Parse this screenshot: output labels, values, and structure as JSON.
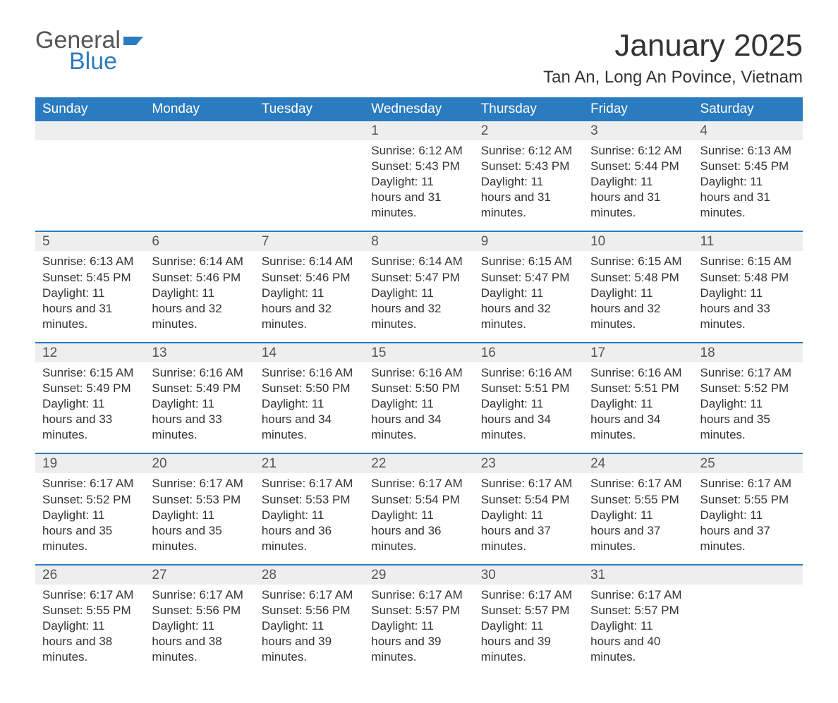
{
  "logo": {
    "word1": "General",
    "word2": "Blue",
    "flag_color": "#2a7bbf"
  },
  "title": "January 2025",
  "location": "Tan An, Long An Povince, Vietnam",
  "colors": {
    "header_bg": "#2a7bbf",
    "header_text": "#ffffff",
    "daynum_bg": "#eeeeee",
    "row_border": "#2a7bbf",
    "body_text": "#333333",
    "page_bg": "#ffffff"
  },
  "fonts": {
    "title_pt": 44,
    "location_pt": 24,
    "dayheader_pt": 19,
    "daynum_pt": 19,
    "body_pt": 17
  },
  "day_headers": [
    "Sunday",
    "Monday",
    "Tuesday",
    "Wednesday",
    "Thursday",
    "Friday",
    "Saturday"
  ],
  "labels": {
    "sunrise": "Sunrise",
    "sunset": "Sunset",
    "daylight": "Daylight"
  },
  "weeks": [
    [
      null,
      null,
      null,
      {
        "n": "1",
        "sunrise": "6:12 AM",
        "sunset": "5:43 PM",
        "daylight": "11 hours and 31 minutes."
      },
      {
        "n": "2",
        "sunrise": "6:12 AM",
        "sunset": "5:43 PM",
        "daylight": "11 hours and 31 minutes."
      },
      {
        "n": "3",
        "sunrise": "6:12 AM",
        "sunset": "5:44 PM",
        "daylight": "11 hours and 31 minutes."
      },
      {
        "n": "4",
        "sunrise": "6:13 AM",
        "sunset": "5:45 PM",
        "daylight": "11 hours and 31 minutes."
      }
    ],
    [
      {
        "n": "5",
        "sunrise": "6:13 AM",
        "sunset": "5:45 PM",
        "daylight": "11 hours and 31 minutes."
      },
      {
        "n": "6",
        "sunrise": "6:14 AM",
        "sunset": "5:46 PM",
        "daylight": "11 hours and 32 minutes."
      },
      {
        "n": "7",
        "sunrise": "6:14 AM",
        "sunset": "5:46 PM",
        "daylight": "11 hours and 32 minutes."
      },
      {
        "n": "8",
        "sunrise": "6:14 AM",
        "sunset": "5:47 PM",
        "daylight": "11 hours and 32 minutes."
      },
      {
        "n": "9",
        "sunrise": "6:15 AM",
        "sunset": "5:47 PM",
        "daylight": "11 hours and 32 minutes."
      },
      {
        "n": "10",
        "sunrise": "6:15 AM",
        "sunset": "5:48 PM",
        "daylight": "11 hours and 32 minutes."
      },
      {
        "n": "11",
        "sunrise": "6:15 AM",
        "sunset": "5:48 PM",
        "daylight": "11 hours and 33 minutes."
      }
    ],
    [
      {
        "n": "12",
        "sunrise": "6:15 AM",
        "sunset": "5:49 PM",
        "daylight": "11 hours and 33 minutes."
      },
      {
        "n": "13",
        "sunrise": "6:16 AM",
        "sunset": "5:49 PM",
        "daylight": "11 hours and 33 minutes."
      },
      {
        "n": "14",
        "sunrise": "6:16 AM",
        "sunset": "5:50 PM",
        "daylight": "11 hours and 34 minutes."
      },
      {
        "n": "15",
        "sunrise": "6:16 AM",
        "sunset": "5:50 PM",
        "daylight": "11 hours and 34 minutes."
      },
      {
        "n": "16",
        "sunrise": "6:16 AM",
        "sunset": "5:51 PM",
        "daylight": "11 hours and 34 minutes."
      },
      {
        "n": "17",
        "sunrise": "6:16 AM",
        "sunset": "5:51 PM",
        "daylight": "11 hours and 34 minutes."
      },
      {
        "n": "18",
        "sunrise": "6:17 AM",
        "sunset": "5:52 PM",
        "daylight": "11 hours and 35 minutes."
      }
    ],
    [
      {
        "n": "19",
        "sunrise": "6:17 AM",
        "sunset": "5:52 PM",
        "daylight": "11 hours and 35 minutes."
      },
      {
        "n": "20",
        "sunrise": "6:17 AM",
        "sunset": "5:53 PM",
        "daylight": "11 hours and 35 minutes."
      },
      {
        "n": "21",
        "sunrise": "6:17 AM",
        "sunset": "5:53 PM",
        "daylight": "11 hours and 36 minutes."
      },
      {
        "n": "22",
        "sunrise": "6:17 AM",
        "sunset": "5:54 PM",
        "daylight": "11 hours and 36 minutes."
      },
      {
        "n": "23",
        "sunrise": "6:17 AM",
        "sunset": "5:54 PM",
        "daylight": "11 hours and 37 minutes."
      },
      {
        "n": "24",
        "sunrise": "6:17 AM",
        "sunset": "5:55 PM",
        "daylight": "11 hours and 37 minutes."
      },
      {
        "n": "25",
        "sunrise": "6:17 AM",
        "sunset": "5:55 PM",
        "daylight": "11 hours and 37 minutes."
      }
    ],
    [
      {
        "n": "26",
        "sunrise": "6:17 AM",
        "sunset": "5:55 PM",
        "daylight": "11 hours and 38 minutes."
      },
      {
        "n": "27",
        "sunrise": "6:17 AM",
        "sunset": "5:56 PM",
        "daylight": "11 hours and 38 minutes."
      },
      {
        "n": "28",
        "sunrise": "6:17 AM",
        "sunset": "5:56 PM",
        "daylight": "11 hours and 39 minutes."
      },
      {
        "n": "29",
        "sunrise": "6:17 AM",
        "sunset": "5:57 PM",
        "daylight": "11 hours and 39 minutes."
      },
      {
        "n": "30",
        "sunrise": "6:17 AM",
        "sunset": "5:57 PM",
        "daylight": "11 hours and 39 minutes."
      },
      {
        "n": "31",
        "sunrise": "6:17 AM",
        "sunset": "5:57 PM",
        "daylight": "11 hours and 40 minutes."
      },
      null
    ]
  ]
}
